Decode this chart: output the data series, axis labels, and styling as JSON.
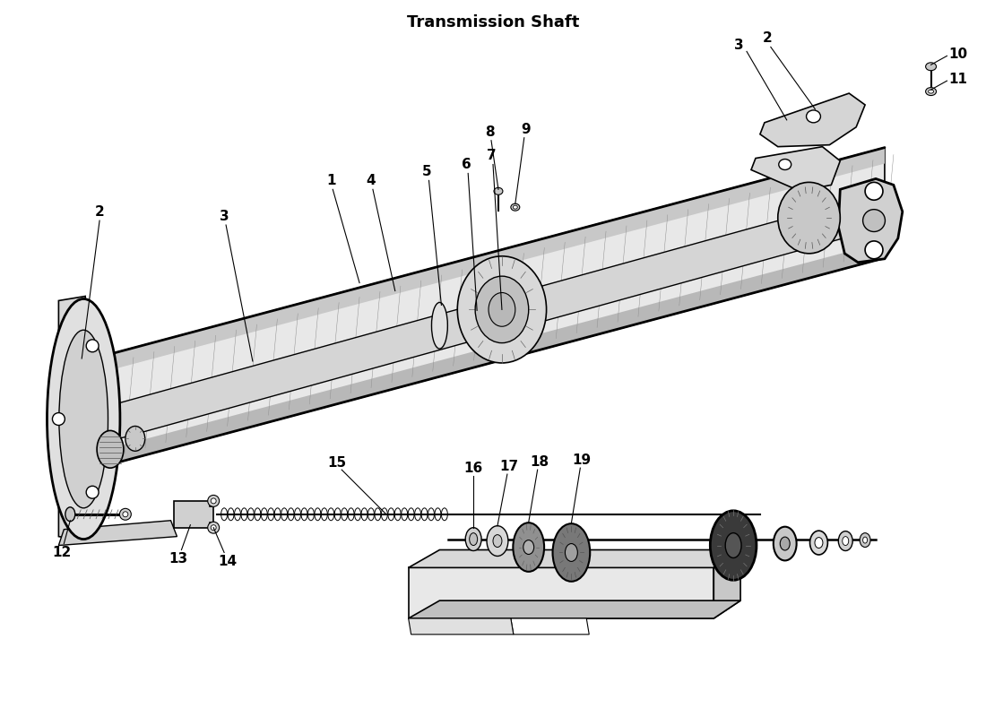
{
  "title": "Transmission Shaft",
  "background_color": "#ffffff",
  "line_color": "#000000",
  "label_color": "#000000",
  "shaft_color": "#1a1a1a",
  "fill_light": "#e8e8e8",
  "fill_dark": "#808080",
  "fill_mid": "#b0b0b0"
}
